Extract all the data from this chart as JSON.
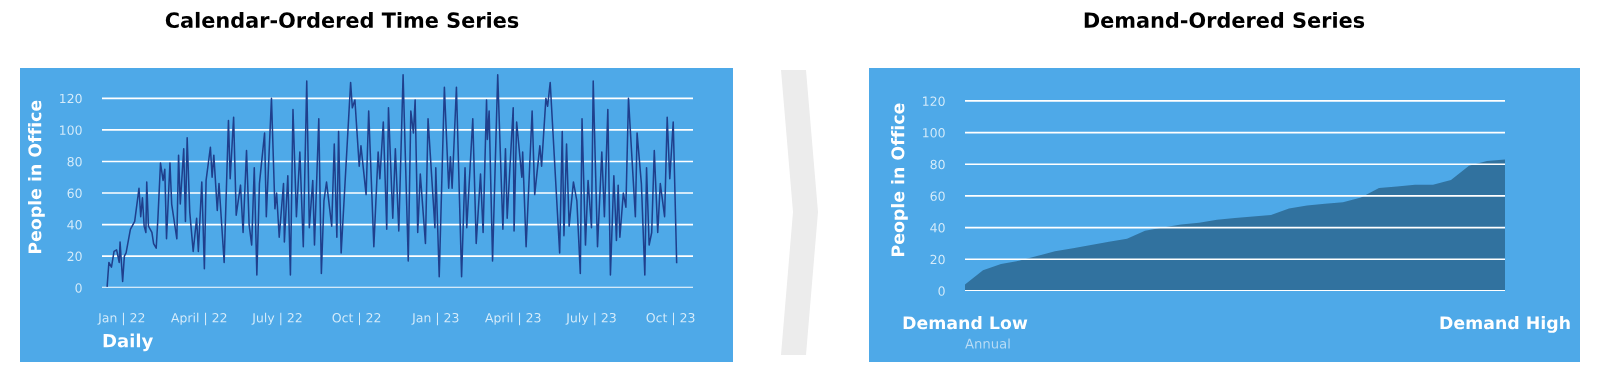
{
  "chart_data": [
    {
      "type": "line",
      "title": "Calendar-Ordered Time Series",
      "ylabel": "People in Office",
      "xlabel": "Daily",
      "x": [
        "2021-12-15",
        "2021-12-17",
        "2021-12-20",
        "2021-12-23",
        "2021-12-26",
        "2021-12-29",
        "2021-12-30",
        "2022-01-02",
        "2022-01-04",
        "2022-01-06",
        "2022-01-11",
        "2022-01-16",
        "2022-01-21",
        "2022-01-23",
        "2022-01-25",
        "2022-01-27",
        "2022-01-29",
        "2022-01-30",
        "2022-02-01",
        "2022-02-05",
        "2022-02-07",
        "2022-02-10",
        "2022-02-12",
        "2022-02-15",
        "2022-02-18",
        "2022-02-20",
        "2022-02-22",
        "2022-02-26",
        "2022-02-28",
        "2022-03-06",
        "2022-03-08",
        "2022-03-10",
        "2022-03-14",
        "2022-03-16",
        "2022-03-18",
        "2022-03-21",
        "2022-03-25",
        "2022-03-29",
        "2022-03-31",
        "2022-04-04",
        "2022-04-07",
        "2022-04-09",
        "2022-04-14",
        "2022-04-16",
        "2022-04-18",
        "2022-04-22",
        "2022-04-24",
        "2022-04-30",
        "2022-05-05",
        "2022-05-07",
        "2022-05-11",
        "2022-05-14",
        "2022-05-19",
        "2022-05-22",
        "2022-05-26",
        "2022-05-29",
        "2022-06-01",
        "2022-06-04",
        "2022-06-07",
        "2022-06-10",
        "2022-06-16",
        "2022-06-18",
        "2022-06-24",
        "2022-06-28",
        "2022-06-30",
        "2022-07-03",
        "2022-07-08",
        "2022-07-09",
        "2022-07-13",
        "2022-07-16",
        "2022-07-19",
        "2022-07-23",
        "2022-07-27",
        "2022-07-31",
        "2022-08-04",
        "2022-08-07",
        "2022-08-11",
        "2022-08-13",
        "2022-08-18",
        "2022-08-21",
        "2022-08-24",
        "2022-08-27",
        "2022-09-02",
        "2022-09-05",
        "2022-09-08",
        "2022-09-10",
        "2022-09-13",
        "2022-09-24",
        "2022-09-26",
        "2022-09-29",
        "2022-10-04",
        "2022-10-06",
        "2022-10-12",
        "2022-10-15",
        "2022-10-21",
        "2022-10-26",
        "2022-10-28",
        "2022-11-01",
        "2022-11-05",
        "2022-11-07",
        "2022-11-12",
        "2022-11-15",
        "2022-11-19",
        "2022-11-24",
        "2022-11-30",
        "2022-12-03",
        "2022-12-06",
        "2022-12-08",
        "2022-12-11",
        "2022-12-14",
        "2022-12-20",
        "2022-12-23",
        "2022-12-31",
        "2023-01-01",
        "2023-01-05",
        "2023-01-11",
        "2023-01-16",
        "2023-01-18",
        "2023-01-20",
        "2023-01-25",
        "2023-01-31",
        "2023-02-04",
        "2023-02-06",
        "2023-02-13",
        "2023-02-17",
        "2023-02-22",
        "2023-02-25",
        "2023-03-01",
        "2023-03-02",
        "2023-03-04",
        "2023-03-08",
        "2023-03-14",
        "2023-03-20",
        "2023-03-23",
        "2023-03-25",
        "2023-04-01",
        "2023-04-02",
        "2023-04-05",
        "2023-04-11",
        "2023-04-12",
        "2023-04-16",
        "2023-04-23",
        "2023-04-26",
        "2023-05-02",
        "2023-05-04",
        "2023-05-09",
        "2023-05-11",
        "2023-05-14",
        "2023-05-25",
        "2023-05-28",
        "2023-05-30",
        "2023-06-02",
        "2023-06-05",
        "2023-06-10",
        "2023-06-14",
        "2023-06-18",
        "2023-06-20",
        "2023-06-24",
        "2023-06-27",
        "2023-07-01",
        "2023-07-03",
        "2023-07-08",
        "2023-07-13",
        "2023-07-16",
        "2023-07-20",
        "2023-07-23",
        "2023-07-27",
        "2023-07-30",
        "2023-08-01",
        "2023-08-03",
        "2023-08-07",
        "2023-08-10",
        "2023-08-13",
        "2023-08-21",
        "2023-08-23",
        "2023-08-28",
        "2023-09-01",
        "2023-09-03",
        "2023-09-06",
        "2023-09-09",
        "2023-09-12",
        "2023-09-16",
        "2023-09-19",
        "2023-09-24",
        "2023-09-27",
        "2023-09-30",
        "2023-10-04",
        "2023-10-08"
      ],
      "series": [
        {
          "color": "#1f3f8c",
          "values": [
            1,
            16,
            13,
            23,
            24,
            16,
            29,
            4,
            20,
            22,
            37,
            42,
            63,
            45,
            57,
            39,
            35,
            67,
            39,
            35,
            28,
            25,
            44,
            79,
            68,
            75,
            31,
            79,
            53,
            31,
            84,
            53,
            88,
            42,
            95,
            48,
            23,
            44,
            23,
            67,
            12,
            68,
            89,
            70,
            84,
            49,
            66,
            16,
            106,
            69,
            108,
            46,
            65,
            35,
            87,
            40,
            27,
            76,
            8,
            66,
            98,
            45,
            120,
            50,
            60,
            32,
            66,
            29,
            71,
            8,
            113,
            45,
            86,
            26,
            131,
            38,
            68,
            27,
            107,
            9,
            55,
            67,
            39,
            91,
            32,
            99,
            22,
            130,
            114,
            119,
            77,
            90,
            59,
            112,
            26,
            86,
            69,
            105,
            37,
            114,
            44,
            88,
            36,
            135,
            17,
            112,
            98,
            119,
            35,
            72,
            28,
            107,
            38,
            76,
            7,
            127,
            63,
            83,
            63,
            127,
            7,
            76,
            38,
            107,
            28,
            72,
            35,
            119,
            94,
            112,
            17,
            135,
            37,
            88,
            44,
            114,
            36,
            105,
            70,
            86,
            26,
            112,
            59,
            90,
            77,
            120,
            115,
            130,
            22,
            99,
            33,
            91,
            39,
            67,
            55,
            9,
            107,
            27,
            68,
            38,
            131,
            26,
            86,
            45,
            113,
            8,
            71,
            30,
            65,
            32,
            60,
            51,
            120,
            45,
            98,
            66,
            8,
            76,
            27,
            35,
            87,
            35,
            66,
            45,
            108,
            69,
            105,
            16
          ]
        }
      ],
      "xlim": [
        "2021-12-09",
        "2023-10-27"
      ],
      "xticks": [
        {
          "value": "2022-01-01",
          "label": "Jan | 22"
        },
        {
          "value": "2022-04-01",
          "label": "April | 22"
        },
        {
          "value": "2022-07-01",
          "label": "July | 22"
        },
        {
          "value": "2022-10-01",
          "label": "Oct | 22"
        },
        {
          "value": "2023-01-01",
          "label": "Jan | 23"
        },
        {
          "value": "2023-04-01",
          "label": "April | 23"
        },
        {
          "value": "2023-07-01",
          "label": "July | 23"
        },
        {
          "value": "2023-10-01",
          "label": "Oct | 23"
        }
      ],
      "ylim": [
        0,
        140
      ],
      "yticks": [
        0,
        20,
        40,
        60,
        80,
        100,
        120
      ],
      "grid": "y"
    },
    {
      "type": "area",
      "title": "Demand-Ordered Series",
      "ylabel": "People in Office",
      "xlabel": "Annual",
      "categories": [
        "Demand Low",
        null,
        null,
        null,
        null,
        null,
        null,
        null,
        null,
        null,
        null,
        null,
        null,
        null,
        null,
        null,
        null,
        null,
        null,
        null,
        null,
        null,
        null,
        null,
        null,
        null,
        null,
        null,
        null,
        null,
        "Demand High"
      ],
      "series": [
        {
          "color": "#31729f",
          "values": [
            4,
            13,
            17,
            19,
            22,
            25,
            27,
            29,
            31,
            33,
            38,
            40,
            42,
            43,
            45,
            46,
            47,
            48,
            52,
            54,
            55,
            56,
            59,
            65,
            66,
            67,
            67,
            70,
            79,
            82,
            83
          ]
        }
      ],
      "ylim": [
        0,
        140
      ],
      "yticks": [
        0,
        20,
        40,
        60,
        80,
        100,
        120
      ],
      "grid": "y"
    }
  ]
}
